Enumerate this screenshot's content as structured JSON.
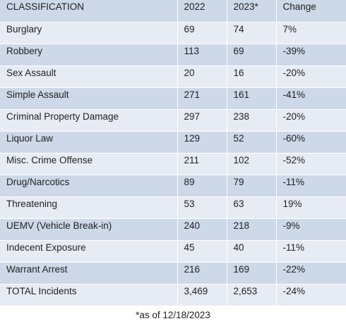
{
  "table": {
    "headers": [
      "CLASSIFICATION",
      "2022",
      "2023*",
      "Change"
    ],
    "rows": [
      [
        "Burglary",
        "69",
        "74",
        "7%"
      ],
      [
        "Robbery",
        "113",
        "69",
        "-39%"
      ],
      [
        "Sex Assault",
        "20",
        "16",
        "-20%"
      ],
      [
        "Simple Assault",
        "271",
        "161",
        "-41%"
      ],
      [
        "Criminal Property Damage",
        "297",
        "238",
        "-20%"
      ],
      [
        "Liquor Law",
        "129",
        "52",
        "-60%"
      ],
      [
        "Misc. Crime Offense",
        "211",
        "102",
        "-52%"
      ],
      [
        "Drug/Narcotics",
        "89",
        "79",
        "-11%"
      ],
      [
        "Threatening",
        "53",
        "63",
        "19%"
      ],
      [
        "UEMV (Vehicle Break-in)",
        "240",
        "218",
        "-9%"
      ],
      [
        "Indecent Exposure",
        "45",
        "40",
        "-11%"
      ],
      [
        "Warrant Arrest",
        "216",
        "169",
        "-22%"
      ],
      [
        "TOTAL Incidents",
        "3,469",
        "2,653",
        "-24%"
      ]
    ]
  },
  "footnote": "*as of 12/18/2023",
  "colors": {
    "row_shaded": "#cdd8e8",
    "row_plain": "#e7ecf4",
    "text": "#1f1f1f"
  }
}
